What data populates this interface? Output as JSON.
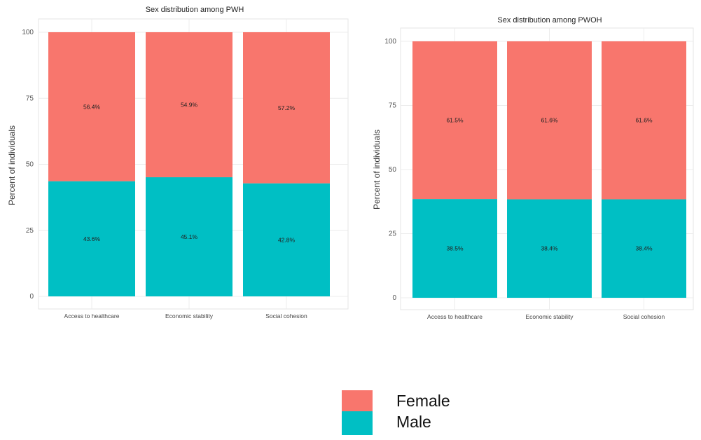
{
  "legend": [
    {
      "label": "Female",
      "color": "#F8766D"
    },
    {
      "label": "Male",
      "color": "#00BFC4"
    }
  ],
  "chart_data": [
    {
      "type": "bar",
      "stacked": true,
      "title": "Sex distribution among PWH",
      "xlabel": "",
      "ylabel": "Percent of individuals",
      "categories": [
        "Access to healthcare",
        "Economic stability",
        "Social cohesion"
      ],
      "yticks": [
        "0",
        "25",
        "50",
        "75",
        "100"
      ],
      "ylim": [
        0,
        100
      ],
      "grid": true,
      "series": [
        {
          "name": "Male",
          "color": "#00BFC4",
          "values": [
            43.6,
            45.1,
            42.8
          ],
          "labels": [
            "43.6%",
            "45.1%",
            "42.8%"
          ]
        },
        {
          "name": "Female",
          "color": "#F8766D",
          "values": [
            56.4,
            54.9,
            57.2
          ],
          "labels": [
            "56.4%",
            "54.9%",
            "57.2%"
          ]
        }
      ]
    },
    {
      "type": "bar",
      "stacked": true,
      "title": "Sex distribution among PWOH",
      "xlabel": "",
      "ylabel": "Percent of individuals",
      "categories": [
        "Access to healthcare",
        "Economic stability",
        "Social cohesion"
      ],
      "yticks": [
        "0",
        "25",
        "50",
        "75",
        "100"
      ],
      "ylim": [
        0,
        100
      ],
      "grid": true,
      "series": [
        {
          "name": "Male",
          "color": "#00BFC4",
          "values": [
            38.5,
            38.4,
            38.4
          ],
          "labels": [
            "38.5%",
            "38.4%",
            "38.4%"
          ]
        },
        {
          "name": "Female",
          "color": "#F8766D",
          "values": [
            61.5,
            61.6,
            61.6
          ],
          "labels": [
            "61.5%",
            "61.6%",
            "61.6%"
          ]
        }
      ]
    }
  ]
}
